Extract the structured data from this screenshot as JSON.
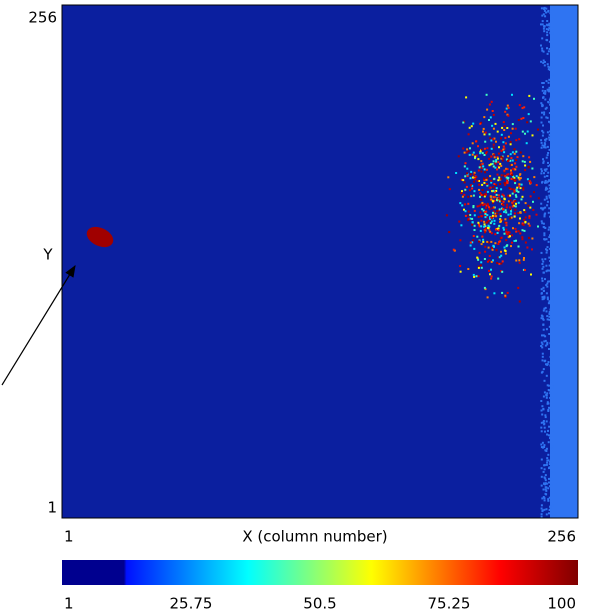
{
  "chart_data": {
    "type": "heatmap",
    "x_label": "X (column number)",
    "y_label": "Y",
    "xlim": [
      1,
      256
    ],
    "xticks": [
      1,
      256
    ],
    "ylim": [
      1,
      256
    ],
    "yticks": [
      1,
      256
    ],
    "clim": [
      1,
      100
    ],
    "cticks": [
      1,
      25.75,
      50.5,
      75.25,
      100
    ]
  }
}
